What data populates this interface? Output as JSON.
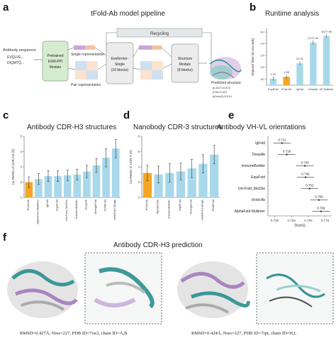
{
  "panels": {
    "a": {
      "letter": "a",
      "title": "tFold-Ab model pipeline",
      "seq_label": "Antibody sequence",
      "seq_lines": [
        "EVQLVE...",
        "DIQMTQ..."
      ],
      "plm_box": "Pretrained ESM-PPI Module",
      "evo_box": "Evoformer-Single (16 blocks)",
      "sm_box": "Structure Module (8 blocks)",
      "recycling": "Recycling",
      "single_rep": "Single representation",
      "pair_rep": "Pair representation",
      "pred_label": "Predicted structure",
      "pred_lines": [
        "pLDDT=0.872",
        "pTM=0.901",
        "pDockQ=0.914"
      ]
    },
    "b": {
      "letter": "b",
      "title": "Runtime analysis"
    },
    "c": {
      "letter": "c",
      "title": "Antibody CDR-H3 structures"
    },
    "d": {
      "letter": "d",
      "title": "Nanobody CDR-3 structures"
    },
    "e": {
      "letter": "e",
      "title": "Antibody VH-VL orientations"
    },
    "f": {
      "letter": "f",
      "title": "Antibody CDR-H3 prediction",
      "caption_left": "RMSD=0.427Å, Nres=227, PDB ID=7ox3, chain ID=A,B",
      "caption_right": "RMSD=0.424Å, Nres=227, PDB ID=7rpt, chain ID=H,L"
    }
  },
  "colors": {
    "bar": "#a8d8ea",
    "highlight": "#f5a623",
    "teal": "#1d8a8a",
    "purple": "#9b6bb5",
    "grey": "#c9c9c9"
  },
  "chart_data": [
    {
      "id": "b",
      "type": "bar",
      "title": "Runtime analysis",
      "ylabel": "Elapsed Time (in seconds)",
      "yscale": "log",
      "categories": [
        "EquiFold",
        "tFold-Ab",
        "IgFold",
        "DeepAb",
        "AF-Multimer"
      ],
      "values": [
        1.07,
        1.55,
        21.91,
        1272.32,
        4477.98
      ],
      "labels": [
        "1.07",
        "1.55",
        "21.91",
        "1272.32",
        "4477.98"
      ],
      "highlight_index": 1
    },
    {
      "id": "c",
      "type": "bar",
      "title": "Antibody CDR-H3 structures",
      "ylabel": "Cα RMSD of CDR-H3 (Å)",
      "categories": [
        "tFold-Ab",
        "AlphaFold-Multimer",
        "IgFold",
        "EquiFold",
        "Uni-Fold_MuSSe",
        "ImmuneBuilder",
        "DeepAb",
        "OmegaFold",
        "ESMFold",
        "HelixFold-Single"
      ],
      "values": [
        2.0,
        2.2,
        2.4,
        2.4,
        2.45,
        2.5,
        2.7,
        3.1,
        3.6,
        4.2
      ],
      "errors": [
        0.35,
        0.35,
        0.35,
        0.35,
        0.35,
        0.35,
        0.4,
        0.45,
        0.6,
        0.6
      ],
      "ylim": [
        1,
        5
      ],
      "highlight_index": 0
    },
    {
      "id": "d",
      "type": "bar",
      "title": "Nanobody CDR-3 structures",
      "ylabel": "Cα RMSD of CDR-3 (Å)",
      "categories": [
        "tFold-Ab",
        "AlphaFold2",
        "ImmuneBuilder",
        "EquiFold",
        "OmegaFold",
        "HelixFold-Single",
        "ESMFold"
      ],
      "values": [
        3.6,
        3.5,
        3.6,
        3.7,
        3.9,
        4.2,
        4.8
      ],
      "errors": [
        0.5,
        0.55,
        0.6,
        0.55,
        0.6,
        0.6,
        0.6
      ],
      "ylim": [
        2,
        6
      ],
      "highlight_index": 0
    },
    {
      "id": "e",
      "type": "scatter",
      "title": "Antibody VH-VL orientations",
      "xlabel": "DockQ",
      "methods": [
        "IgFold",
        "DeepAb",
        "ImmuneBuilder",
        "EquiFold",
        "Uni-Fold_MuSSe",
        "tFold-Ab",
        "AlphaFold-Multimer"
      ],
      "values": [
        0.711,
        0.718,
        0.745,
        0.746,
        0.752,
        0.766,
        0.769
      ],
      "labels": [
        "0.711",
        "0.718",
        "0.745",
        "0.746",
        "0.752",
        "0.766",
        "0.769"
      ],
      "xlim": [
        0.69,
        0.785
      ],
      "xticks": [
        "0.700",
        "0.725",
        "0.750",
        "0.775"
      ]
    }
  ]
}
